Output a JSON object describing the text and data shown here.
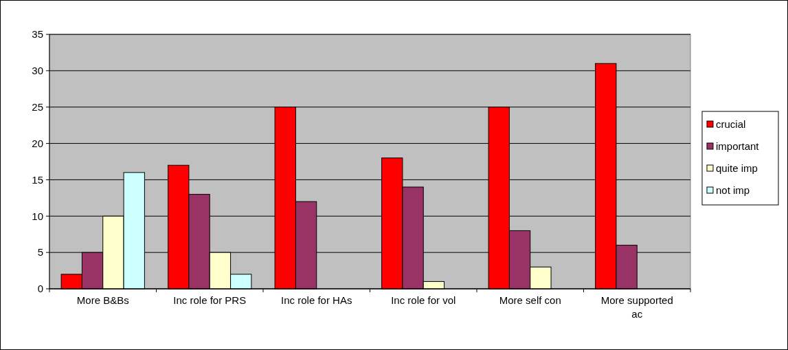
{
  "chart_data": {
    "type": "bar",
    "categories": [
      "More B&Bs",
      "Inc role for PRS",
      "Inc role for HAs",
      "Inc role for vol",
      "More self con",
      "More supported ac"
    ],
    "series": [
      {
        "name": "crucial",
        "color": "#ff0000",
        "values": [
          2,
          17,
          25,
          18,
          25,
          31
        ]
      },
      {
        "name": "important",
        "color": "#993366",
        "values": [
          5,
          13,
          12,
          14,
          8,
          6
        ]
      },
      {
        "name": "quite imp",
        "color": "#ffffcc",
        "values": [
          10,
          5,
          0,
          1,
          3,
          0
        ]
      },
      {
        "name": "not imp",
        "color": "#ccffff",
        "values": [
          16,
          2,
          0,
          0,
          0,
          0
        ]
      }
    ],
    "ylim": [
      0,
      35
    ],
    "yticks": [
      0,
      5,
      10,
      15,
      20,
      25,
      30,
      35
    ],
    "grid": "y",
    "legend": "right"
  }
}
